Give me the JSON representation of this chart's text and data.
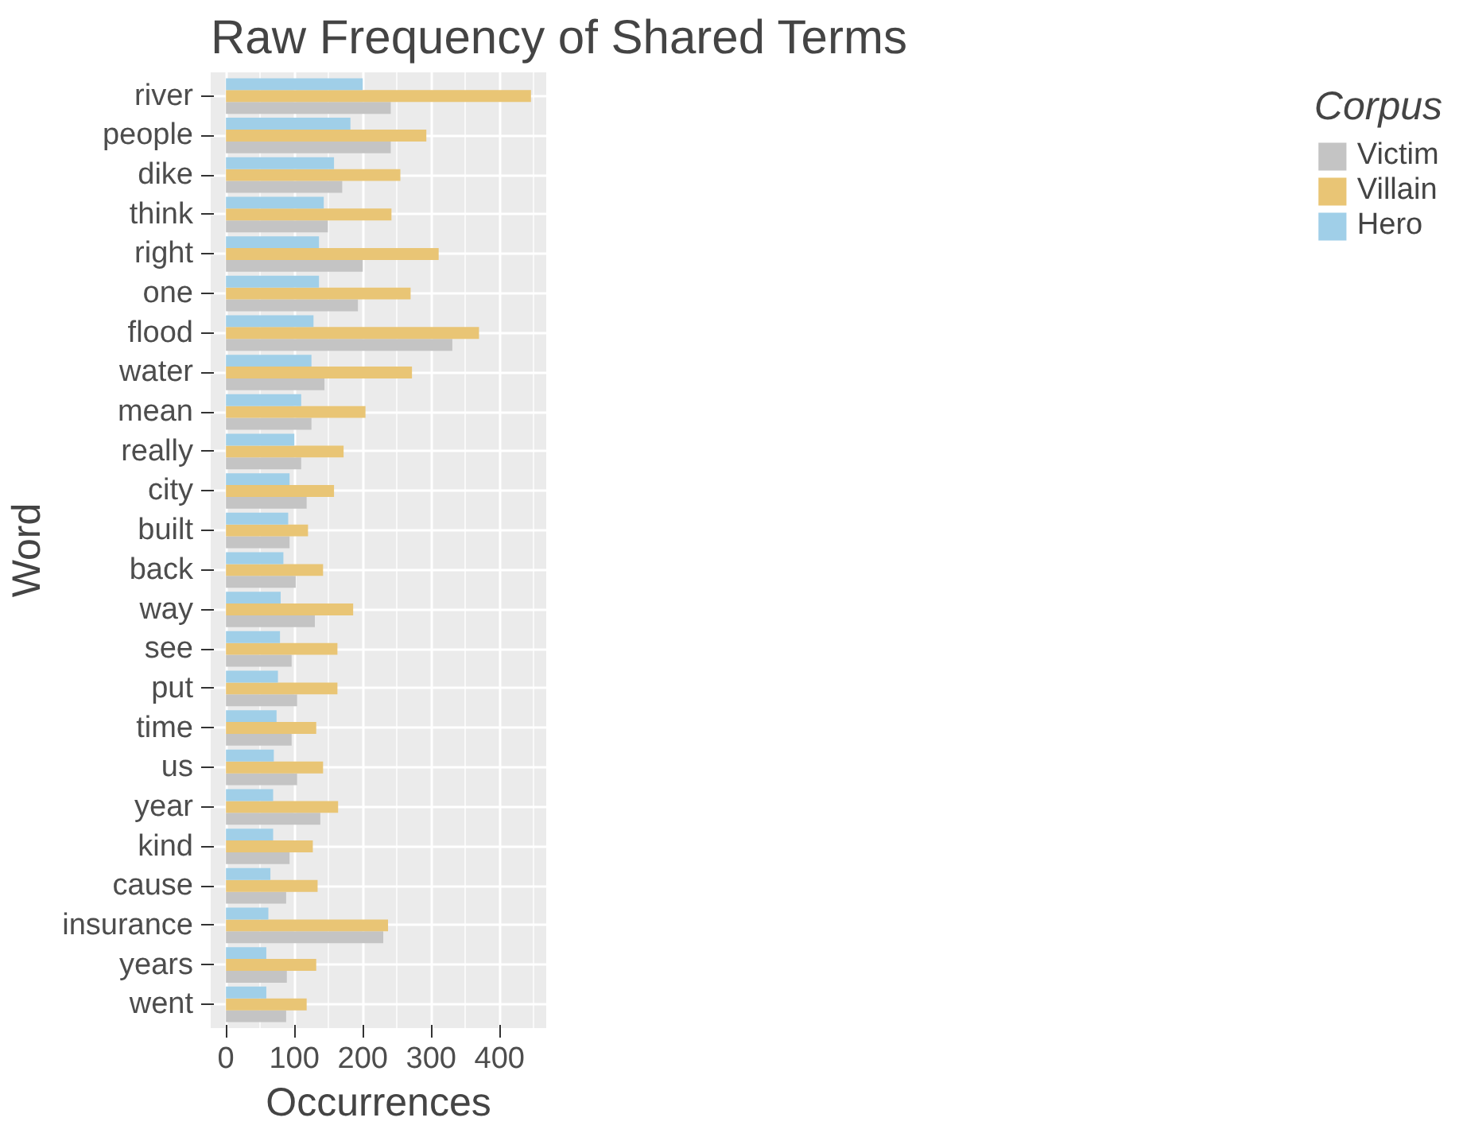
{
  "chart_data": {
    "type": "bar",
    "orientation": "horizontal",
    "title": "Raw Frequency of Shared Terms",
    "xlabel": "Occurrences",
    "ylabel": "Word",
    "legend_title": "Corpus",
    "categories": [
      "river",
      "people",
      "dike",
      "think",
      "right",
      "one",
      "flood",
      "water",
      "mean",
      "really",
      "city",
      "built",
      "back",
      "way",
      "see",
      "put",
      "time",
      "us",
      "year",
      "kind",
      "cause",
      "insurance",
      "years",
      "went"
    ],
    "series": [
      {
        "name": "Victim",
        "color": "#c4c4c4",
        "values": [
          241,
          241,
          170,
          149,
          200,
          193,
          331,
          144,
          125,
          110,
          118,
          93,
          102,
          130,
          96,
          104,
          96,
          104,
          138,
          93,
          88,
          230,
          89,
          88
        ]
      },
      {
        "name": "Villain",
        "color": "#e9c575",
        "values": [
          446,
          293,
          255,
          242,
          311,
          270,
          370,
          272,
          204,
          172,
          158,
          120,
          142,
          186,
          163,
          163,
          132,
          142,
          164,
          127,
          134,
          237,
          132,
          118
        ]
      },
      {
        "name": "Hero",
        "color": "#a0cfe8",
        "values": [
          200,
          182,
          158,
          143,
          136,
          136,
          128,
          125,
          110,
          100,
          93,
          91,
          84,
          80,
          79,
          76,
          74,
          70,
          69,
          69,
          65,
          62,
          59,
          59
        ]
      }
    ],
    "xlim": [
      -22.3,
      468.3
    ],
    "xticks": [
      0,
      100,
      200,
      300,
      400
    ],
    "grid": true,
    "legend": "right"
  }
}
